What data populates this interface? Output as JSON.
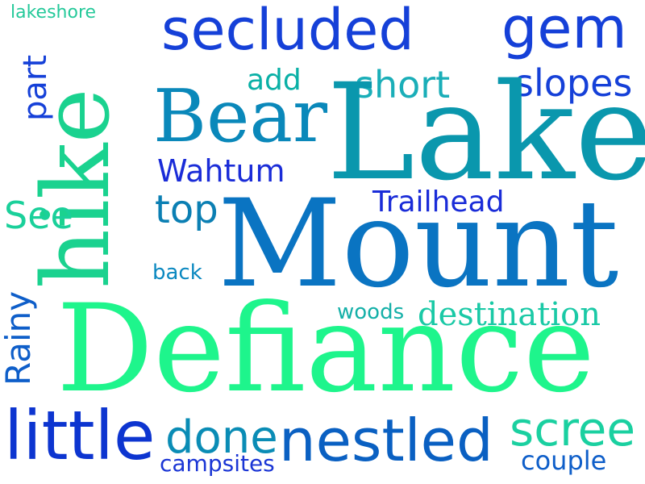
{
  "words": [
    {
      "id": "lakeshore",
      "text": "lakeshore",
      "color": "#25c99a"
    },
    {
      "id": "secluded",
      "text": "secluded",
      "color": "#1540d8"
    },
    {
      "id": "gem",
      "text": "gem",
      "color": "#1540d8"
    },
    {
      "id": "hike",
      "text": "hike",
      "color": "#1ad28f"
    },
    {
      "id": "part",
      "text": "part",
      "color": "#1540d8"
    },
    {
      "id": "add",
      "text": "add",
      "color": "#0ab0a6"
    },
    {
      "id": "short",
      "text": "short",
      "color": "#1aaeb8"
    },
    {
      "id": "slopes",
      "text": "slopes",
      "color": "#1540d8"
    },
    {
      "id": "bear",
      "text": "Bear",
      "color": "#0a88ba"
    },
    {
      "id": "lake",
      "text": "Lake",
      "color": "#0a97ad"
    },
    {
      "id": "wahtum",
      "text": "Wahtum",
      "color": "#1a2cd8"
    },
    {
      "id": "see",
      "text": "See",
      "color": "#1ad09a"
    },
    {
      "id": "top",
      "text": "top",
      "color": "#0b7fb3"
    },
    {
      "id": "trailhead",
      "text": "Trailhead",
      "color": "#1a2cd8"
    },
    {
      "id": "mount",
      "text": "Mount",
      "color": "#0a74c2"
    },
    {
      "id": "back",
      "text": "back",
      "color": "#0a88c0"
    },
    {
      "id": "rainy",
      "text": "Rainy",
      "color": "#0e5ec9"
    },
    {
      "id": "woods",
      "text": "woods",
      "color": "#14b0a8"
    },
    {
      "id": "destination",
      "text": "destination",
      "color": "#1ac9a6"
    },
    {
      "id": "defiance",
      "text": "Defiance",
      "color": "#1ef58c"
    },
    {
      "id": "little",
      "text": "little",
      "color": "#0d35d0"
    },
    {
      "id": "done",
      "text": "done",
      "color": "#0a8cb5"
    },
    {
      "id": "nestled",
      "text": "nestled",
      "color": "#0a60c2"
    },
    {
      "id": "scree",
      "text": "scree",
      "color": "#1ad0a0"
    },
    {
      "id": "campsites",
      "text": "campsites",
      "color": "#1a35d5"
    },
    {
      "id": "couple",
      "text": "couple",
      "color": "#0e5ec9"
    }
  ]
}
